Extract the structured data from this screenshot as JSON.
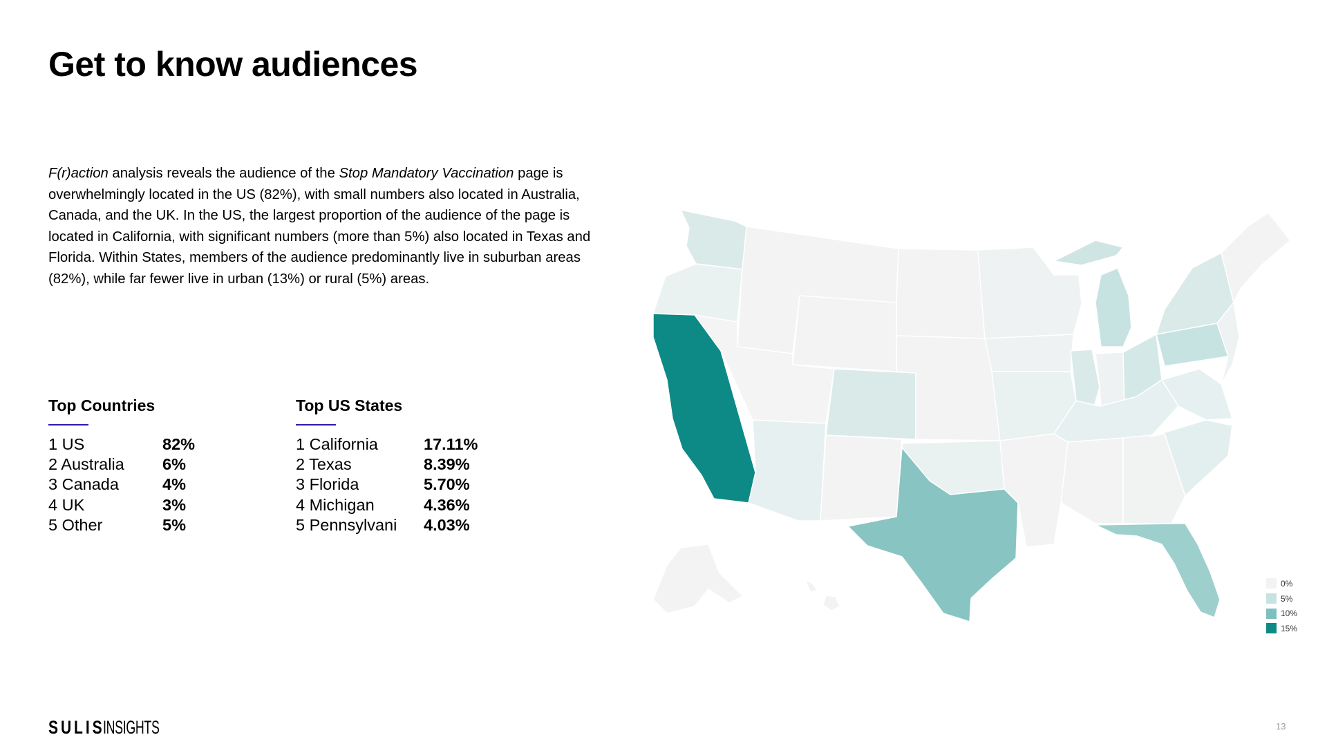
{
  "slide": {
    "title": "Get to know audiences",
    "page_number": "13"
  },
  "intro": {
    "term1": "F(r)action",
    "text1": " analysis reveals the audience of the ",
    "term2": "Stop Mandatory Vaccination",
    "text2": " page is overwhelmingly located in the US (82%), with small numbers also located in Australia, Canada, and the UK. In the US, the largest proportion of the audience of the page is located in California, with significant numbers (more than 5%) also located in Texas and Florida. Within States, members of the audience predominantly live in suburban areas (82%), while far fewer live in urban (13%) or rural (5%) areas."
  },
  "top_countries": {
    "heading": "Top Countries",
    "items": [
      {
        "label": "1 US",
        "value": "82%"
      },
      {
        "label": "2 Australia",
        "value": "6%"
      },
      {
        "label": "3 Canada",
        "value": "4%"
      },
      {
        "label": "4 UK",
        "value": "3%"
      },
      {
        "label": "5 Other",
        "value": "5%"
      }
    ]
  },
  "top_states": {
    "heading": "Top US States",
    "items": [
      {
        "label": "1 California",
        "value": "17.11%"
      },
      {
        "label": "2 Texas",
        "value": "8.39%"
      },
      {
        "label": "3 Florida",
        "value": "5.70%"
      },
      {
        "label": "4 Michigan",
        "value": "4.36%"
      },
      {
        "label": "5 Pennsylvani",
        "value": "4.03%"
      }
    ]
  },
  "map": {
    "highlight_shares": [
      {
        "state": "California",
        "share": 17.11
      },
      {
        "state": "Texas",
        "share": 8.39
      },
      {
        "state": "Florida",
        "share": 5.7
      },
      {
        "state": "Michigan",
        "share": 4.36
      },
      {
        "state": "Pennsylvania",
        "share": 4.03
      }
    ],
    "legend": [
      {
        "label": "0%",
        "color": "#f3f3f3"
      },
      {
        "label": "5%",
        "color": "#c6e3e2"
      },
      {
        "label": "10%",
        "color": "#7cc1bf"
      },
      {
        "label": "15%",
        "color": "#0d8a85"
      }
    ]
  },
  "logo": {
    "brand": "SULIS",
    "sub": "INSIGHTS"
  }
}
